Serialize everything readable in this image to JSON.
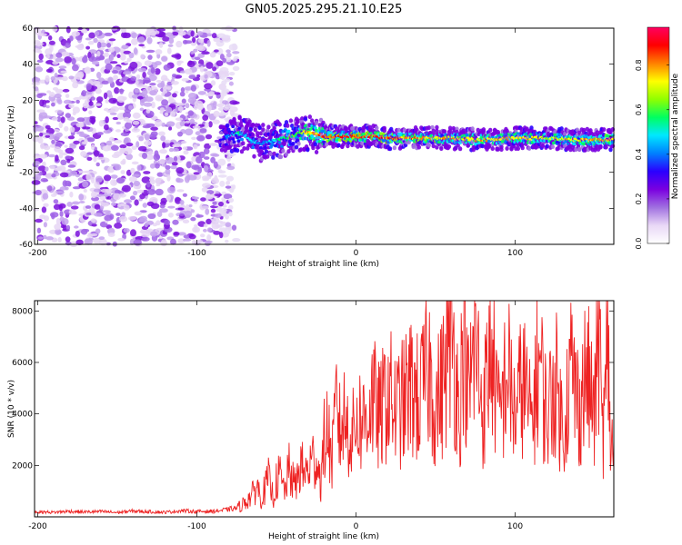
{
  "title": "GN05.2025.295.21.10.E25",
  "chart_data": [
    {
      "type": "heatmap",
      "title": "GN05.2025.295.21.10.E25",
      "xlabel": "Height of straight line (km)",
      "ylabel": "Frequency (Hz)",
      "xlim": [
        -202,
        162
      ],
      "ylim": [
        -60,
        60
      ],
      "xticks": [
        -200,
        -100,
        0,
        100
      ],
      "yticks": [
        -60,
        -40,
        -20,
        0,
        20,
        40,
        60
      ],
      "colorbar": {
        "label": "Normalized spectral amplitude",
        "range": [
          0,
          0.97
        ],
        "ticks": [
          0.0,
          0.2,
          0.4,
          0.6,
          0.8
        ],
        "colors": [
          "#ffffff",
          "#e9d8f6",
          "#a070e0",
          "#7a00e0",
          "#2a00ff",
          "#0080ff",
          "#00e8ff",
          "#00ff60",
          "#90ff00",
          "#ffff00",
          "#ff8000",
          "#ff0000",
          "#ff0060"
        ]
      },
      "noise_region": {
        "x_range": [
          -202,
          -75
        ],
        "freq_range": [
          -60,
          60
        ]
      },
      "signal_band": {
        "x": [
          -85,
          -80,
          -75,
          -70,
          -65,
          -60,
          -55,
          -50,
          -45,
          -40,
          -35,
          -30,
          -25,
          -20,
          -10,
          0,
          10,
          20,
          40,
          60,
          80,
          100,
          120,
          140,
          162
        ],
        "center_freq": [
          -2,
          0,
          2,
          1,
          -3,
          -4,
          -3,
          -2,
          -1,
          0,
          2,
          2,
          1,
          0,
          0,
          0,
          0,
          -1,
          -1,
          -1,
          -2,
          -1,
          -1,
          -2,
          -2
        ],
        "peak_amplitude": [
          0.3,
          0.45,
          0.6,
          0.5,
          0.55,
          0.4,
          0.5,
          0.55,
          0.6,
          0.65,
          0.7,
          0.8,
          0.85,
          0.9,
          0.9,
          0.95,
          0.9,
          0.88,
          0.85,
          0.8,
          0.82,
          0.8,
          0.78,
          0.8,
          0.85
        ]
      }
    },
    {
      "type": "line",
      "xlabel": "Height of straight line (km)",
      "ylabel": "SNR (10 * v/v)",
      "xlim": [
        -202,
        162
      ],
      "ylim": [
        0,
        8400
      ],
      "xticks": [
        -200,
        -100,
        0,
        100
      ],
      "yticks": [
        2000,
        4000,
        6000,
        8000
      ],
      "series": [
        {
          "name": "SNR",
          "color": "#ee2222",
          "x": [
            -202,
            -190,
            -180,
            -170,
            -160,
            -150,
            -140,
            -130,
            -120,
            -110,
            -100,
            -90,
            -85,
            -80,
            -75,
            -72,
            -70,
            -68,
            -65,
            -62,
            -60,
            -58,
            -55,
            -52,
            -50,
            -48,
            -45,
            -42,
            -40,
            -38,
            -35,
            -32,
            -30,
            -28,
            -25,
            -22,
            -20,
            -18,
            -15,
            -12,
            -10,
            -8,
            -5,
            -2,
            0,
            5,
            10,
            15,
            20,
            25,
            30,
            35,
            40,
            45,
            50,
            55,
            60,
            65,
            68,
            70,
            75,
            80,
            85,
            90,
            95,
            100,
            105,
            110,
            115,
            120,
            125,
            130,
            135,
            140,
            145,
            150,
            152,
            155,
            157,
            158,
            160,
            162
          ],
          "values": [
            200,
            180,
            220,
            190,
            210,
            170,
            230,
            200,
            180,
            240,
            210,
            220,
            250,
            300,
            350,
            450,
            600,
            700,
            900,
            1300,
            700,
            1000,
            1500,
            800,
            1400,
            1700,
            1000,
            1900,
            1500,
            1200,
            2100,
            1700,
            1900,
            2200,
            2400,
            1400,
            3000,
            3500,
            2200,
            4800,
            3300,
            4000,
            3600,
            3200,
            4000,
            3800,
            4800,
            3900,
            5100,
            4200,
            4600,
            5200,
            4500,
            6200,
            4400,
            5400,
            7800,
            4000,
            8300,
            4600,
            6800,
            4200,
            7000,
            3800,
            6000,
            4000,
            5600,
            3700,
            6400,
            3900,
            5600,
            3500,
            6000,
            4400,
            5800,
            4000,
            8000,
            3500,
            4500,
            8300,
            2600,
            3000
          ]
        }
      ]
    }
  ]
}
